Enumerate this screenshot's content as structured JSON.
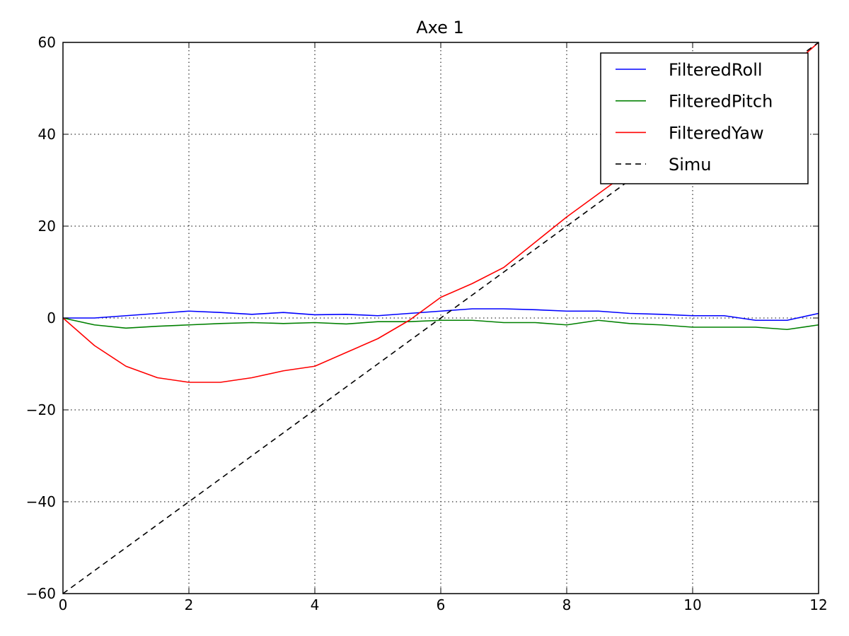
{
  "chart_data": {
    "type": "line",
    "title": "Axe 1",
    "xlabel": "",
    "ylabel": "",
    "xlim": [
      0,
      12
    ],
    "ylim": [
      -60,
      60
    ],
    "xticks": [
      0,
      2,
      4,
      6,
      8,
      10,
      12
    ],
    "yticks": [
      -60,
      -40,
      -20,
      0,
      20,
      40,
      60
    ],
    "xtick_labels": [
      "0",
      "2",
      "4",
      "6",
      "8",
      "10",
      "12"
    ],
    "ytick_labels": [
      "−60",
      "−40",
      "−20",
      "0",
      "20",
      "40",
      "60"
    ],
    "grid": true,
    "legend_position": "top-right",
    "x": [
      0,
      0.5,
      1,
      1.5,
      2,
      2.5,
      3,
      3.5,
      4,
      4.5,
      5,
      5.5,
      6,
      6.5,
      7,
      7.5,
      8,
      8.5,
      9,
      9.5,
      10,
      10.5,
      11,
      11.5,
      12
    ],
    "series": [
      {
        "name": "FilteredRoll",
        "color": "#0000ff",
        "style": "solid",
        "values": [
          0,
          0,
          0.5,
          1,
          1.5,
          1.2,
          0.8,
          1.2,
          0.7,
          0.8,
          0.5,
          1,
          1.5,
          2,
          2,
          1.8,
          1.5,
          1.5,
          1,
          0.8,
          0.5,
          0.5,
          -0.5,
          -0.5,
          1
        ]
      },
      {
        "name": "FilteredPitch",
        "color": "#008000",
        "style": "solid",
        "values": [
          0,
          -1.5,
          -2.2,
          -1.8,
          -1.5,
          -1.2,
          -1,
          -1.2,
          -1,
          -1.3,
          -0.8,
          -0.8,
          -0.5,
          -0.5,
          -1,
          -1,
          -1.5,
          -0.5,
          -1.2,
          -1.5,
          -2,
          -2,
          -2,
          -2.5,
          -1.5
        ]
      },
      {
        "name": "FilteredYaw",
        "color": "#ff0000",
        "style": "solid",
        "values": [
          0,
          -6,
          -10.5,
          -13,
          -14,
          -14,
          -13,
          -11.5,
          -10.5,
          -7.5,
          -4.5,
          -0.5,
          4.5,
          7.5,
          11,
          16.5,
          22,
          27,
          32,
          37,
          42,
          46,
          50,
          54,
          60
        ]
      },
      {
        "name": "Simu",
        "color": "#000000",
        "style": "dashed",
        "values": [
          -60,
          -55,
          -50,
          -45,
          -40,
          -35,
          -30,
          -25,
          -20,
          -15,
          -10,
          -5,
          0,
          5,
          10,
          15,
          20,
          25,
          30,
          35,
          40,
          45,
          50,
          55,
          60
        ]
      }
    ]
  }
}
